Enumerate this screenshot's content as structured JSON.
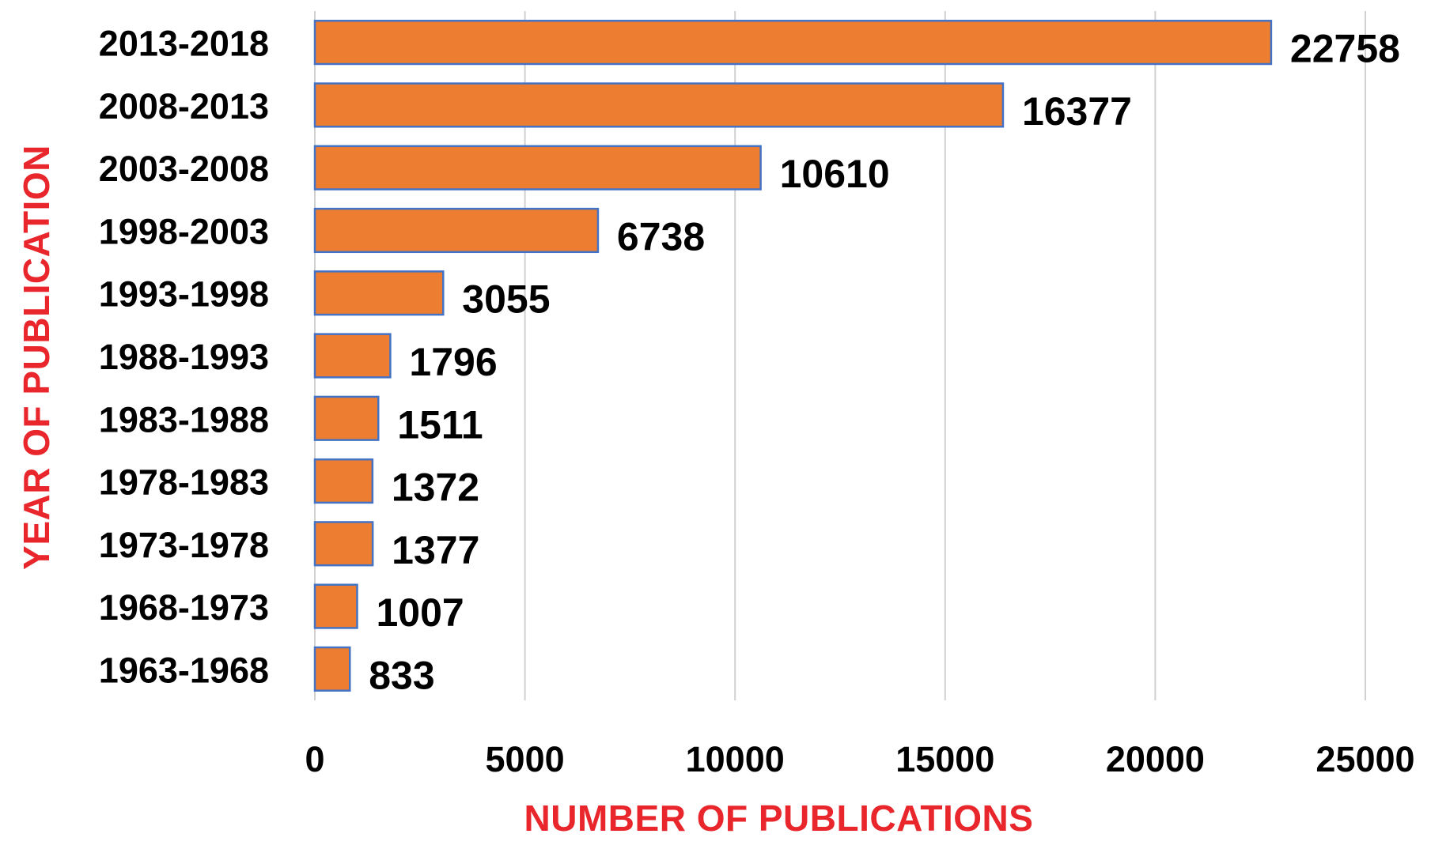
{
  "chart_data": {
    "type": "bar",
    "orientation": "horizontal",
    "categories": [
      "2013-2018",
      "2008-2013",
      "2003-2008",
      "1998-2003",
      "1993-1998",
      "1988-1993",
      "1983-1988",
      "1978-1983",
      "1973-1978",
      "1968-1973",
      "1963-1968"
    ],
    "values": [
      22758,
      16377,
      10610,
      6738,
      3055,
      1796,
      1511,
      1372,
      1377,
      1007,
      833
    ],
    "data_labels": [
      "22758",
      "16377",
      "10610",
      "6738",
      "3055",
      "1796",
      "1511",
      "1372",
      "1377",
      "1007",
      "833"
    ],
    "xlabel": "NUMBER OF PUBLICATIONS",
    "ylabel": "YEAR OF PUBLICATION",
    "xlim": [
      0,
      25000
    ],
    "x_ticks": [
      0,
      5000,
      10000,
      15000,
      20000,
      25000
    ],
    "x_tick_labels": [
      "0",
      "5000",
      "10000",
      "15000",
      "20000",
      "25000"
    ],
    "grid": "vertical",
    "legend": "none",
    "colors": {
      "bar_fill": "#ed7d31",
      "bar_border": "#4472c4",
      "gridline": "#d0d0d0",
      "axis_title": "#e8262b",
      "text": "#000000"
    }
  }
}
